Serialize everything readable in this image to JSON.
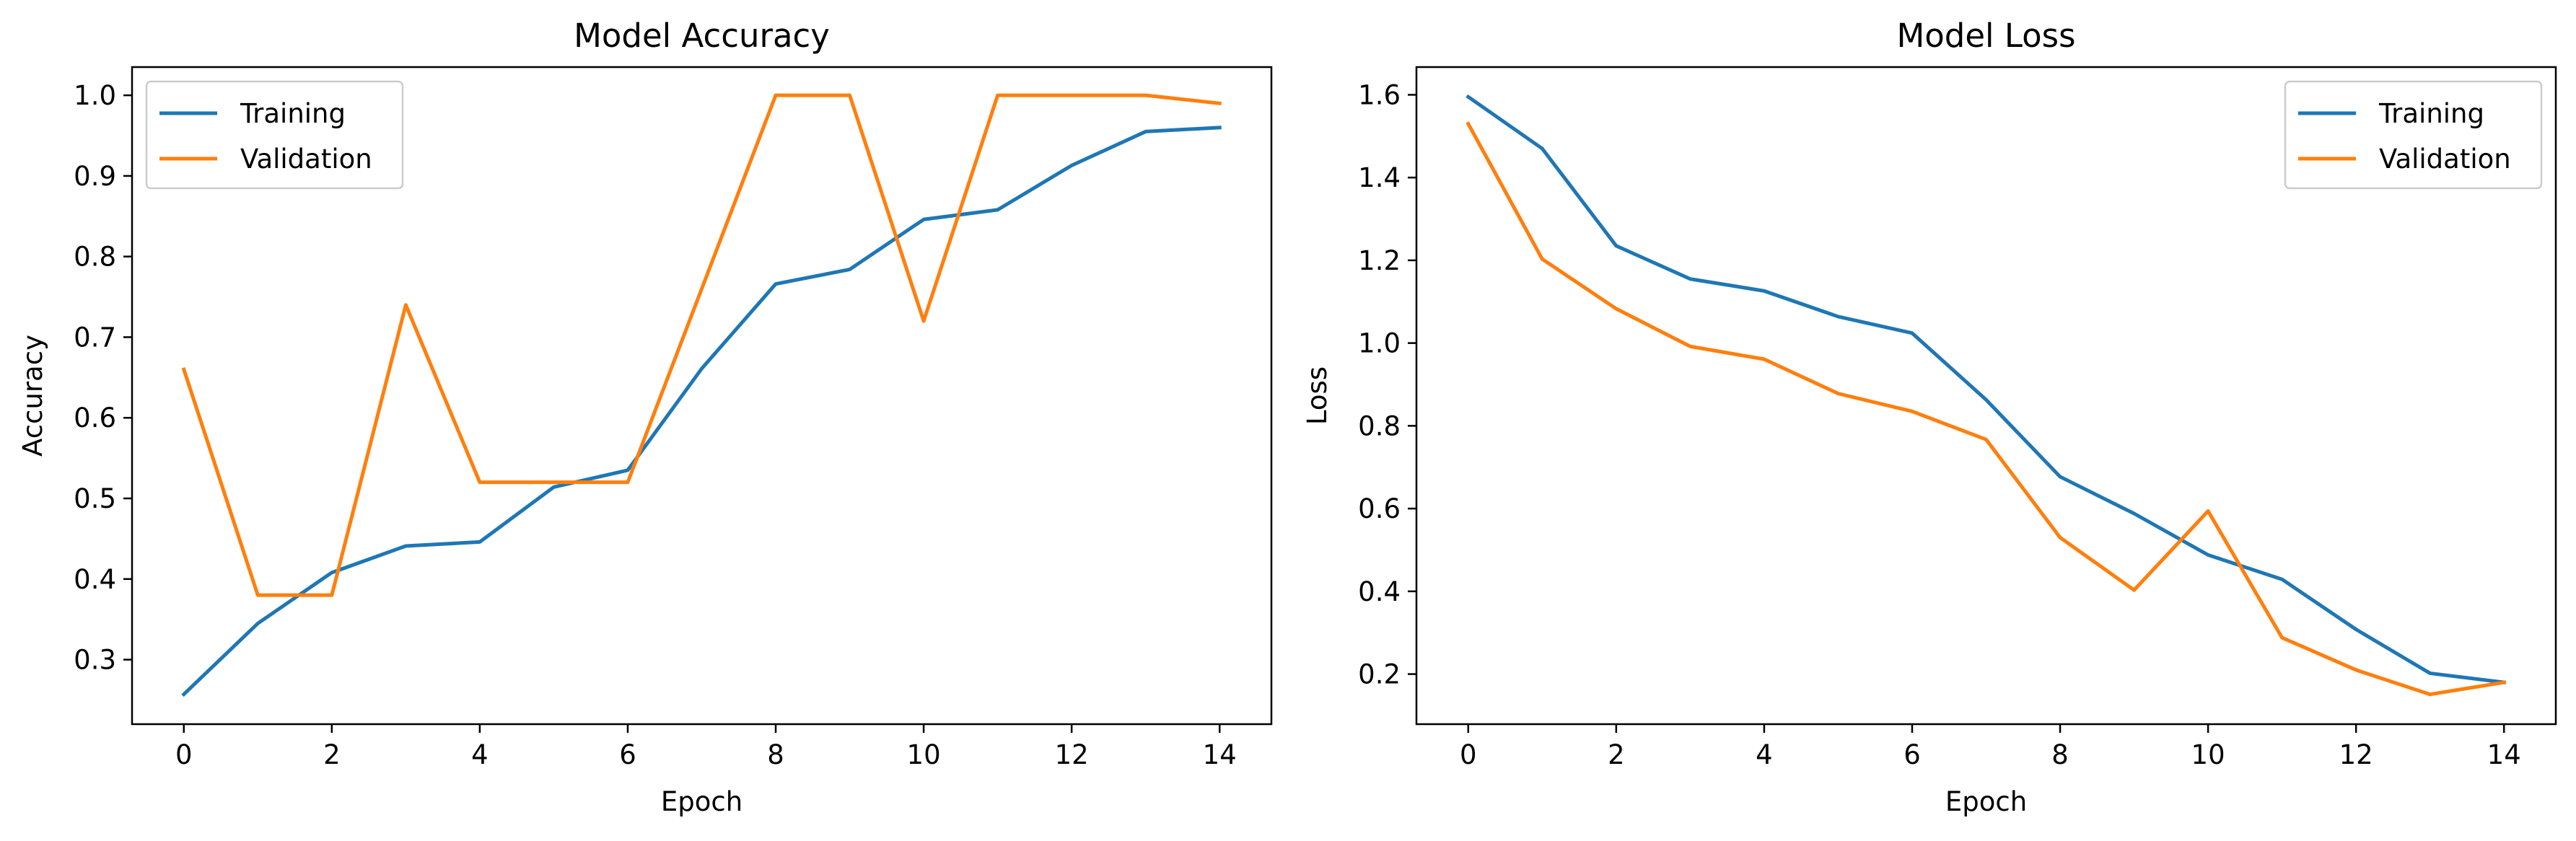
{
  "chart_data": [
    {
      "type": "line",
      "title": "Model Accuracy",
      "xlabel": "Epoch",
      "ylabel": "Accuracy",
      "xlim": [
        -0.7,
        14.7
      ],
      "ylim": [
        0.22,
        1.035
      ],
      "xticks": [
        0,
        2,
        4,
        6,
        8,
        10,
        12,
        14
      ],
      "xtick_labels": [
        "0",
        "2",
        "4",
        "6",
        "8",
        "10",
        "12",
        "14"
      ],
      "yticks": [
        0.3,
        0.4,
        0.5,
        0.6,
        0.7,
        0.8,
        0.9,
        1.0
      ],
      "ytick_labels": [
        "0.3",
        "0.4",
        "0.5",
        "0.6",
        "0.7",
        "0.8",
        "0.9",
        "1.0"
      ],
      "legend_position": "upper-left",
      "grid": false,
      "x": [
        0,
        1,
        2,
        3,
        4,
        5,
        6,
        7,
        8,
        9,
        10,
        11,
        12,
        13,
        14
      ],
      "series": [
        {
          "name": "Training",
          "color": "#1f77b4",
          "values": [
            0.257,
            0.345,
            0.408,
            0.441,
            0.446,
            0.514,
            0.535,
            0.661,
            0.766,
            0.784,
            0.846,
            0.858,
            0.913,
            0.955,
            0.96
          ]
        },
        {
          "name": "Validation",
          "color": "#ff7f0e",
          "values": [
            0.66,
            0.38,
            0.38,
            0.74,
            0.52,
            0.52,
            0.52,
            0.76,
            1.0,
            1.0,
            0.72,
            1.0,
            1.0,
            1.0,
            0.99
          ]
        }
      ]
    },
    {
      "type": "line",
      "title": "Model Loss",
      "xlabel": "Epoch",
      "ylabel": "Loss",
      "xlim": [
        -0.7,
        14.7
      ],
      "ylim": [
        0.079,
        1.667
      ],
      "xticks": [
        0,
        2,
        4,
        6,
        8,
        10,
        12,
        14
      ],
      "xtick_labels": [
        "0",
        "2",
        "4",
        "6",
        "8",
        "10",
        "12",
        "14"
      ],
      "yticks": [
        0.2,
        0.4,
        0.6,
        0.8,
        1.0,
        1.2,
        1.4,
        1.6
      ],
      "ytick_labels": [
        "0.2",
        "0.4",
        "0.6",
        "0.8",
        "1.0",
        "1.2",
        "1.4",
        "1.6"
      ],
      "legend_position": "upper-right",
      "grid": false,
      "x": [
        0,
        1,
        2,
        3,
        4,
        5,
        6,
        7,
        8,
        9,
        10,
        11,
        12,
        13,
        14
      ],
      "series": [
        {
          "name": "Training",
          "color": "#1f77b4",
          "values": [
            1.595,
            1.47,
            1.235,
            1.155,
            1.126,
            1.064,
            1.024,
            0.863,
            0.677,
            0.588,
            0.488,
            0.429,
            0.308,
            0.202,
            0.18
          ]
        },
        {
          "name": "Validation",
          "color": "#ff7f0e",
          "values": [
            1.53,
            1.203,
            1.083,
            0.992,
            0.961,
            0.878,
            0.835,
            0.767,
            0.53,
            0.403,
            0.594,
            0.288,
            0.21,
            0.151,
            0.18
          ]
        }
      ]
    }
  ]
}
